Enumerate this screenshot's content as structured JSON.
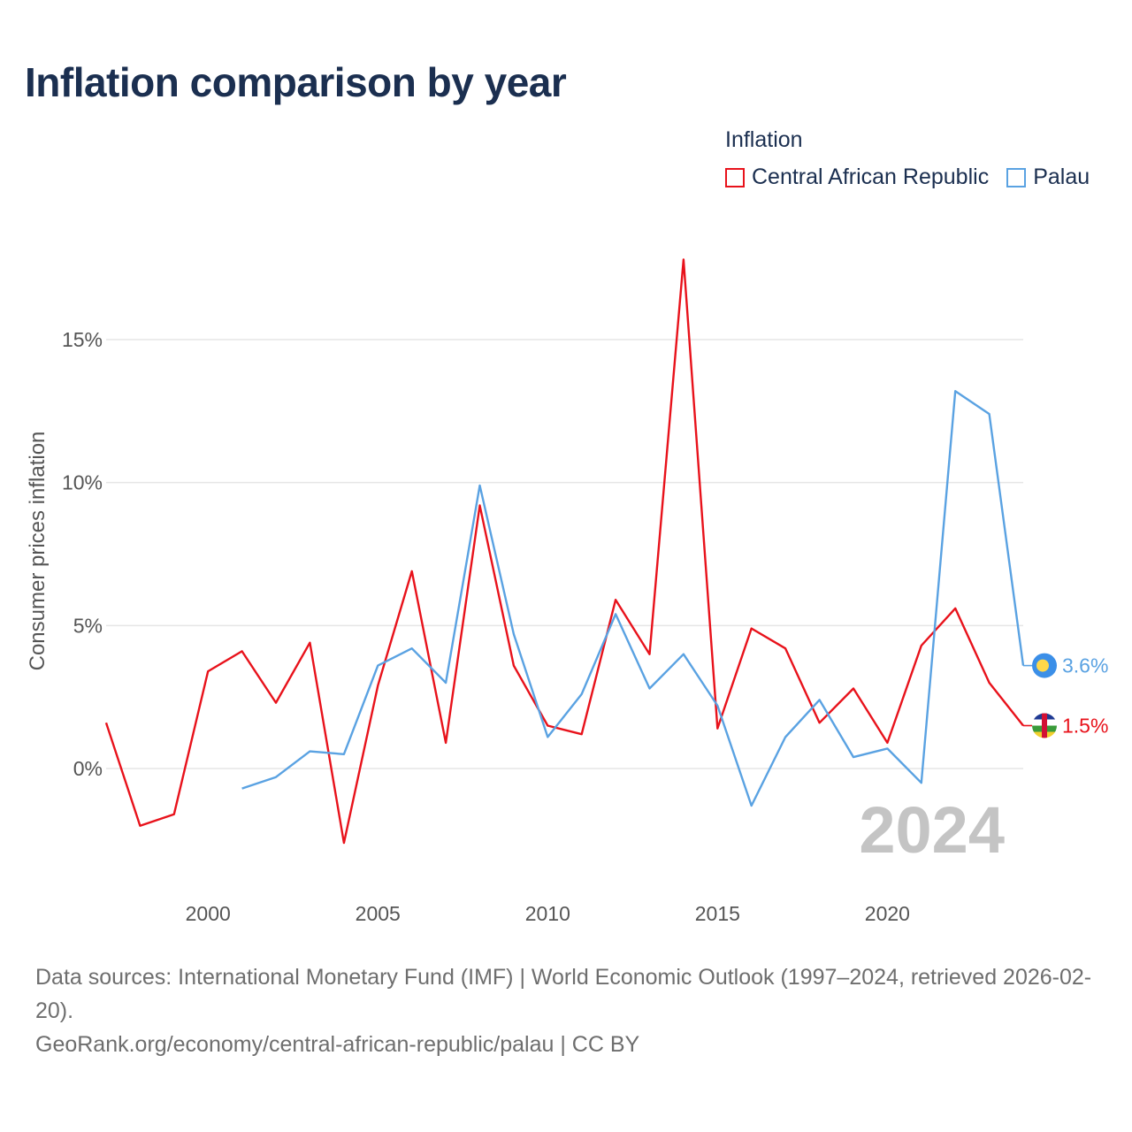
{
  "title": "Inflation comparison by year",
  "legend": {
    "title": "Inflation",
    "items": [
      {
        "label": "Central African Republic",
        "color": "#e8121b"
      },
      {
        "label": "Palau",
        "color": "#5aa2e2"
      }
    ]
  },
  "chart_data": {
    "type": "line",
    "title": "Inflation comparison by year",
    "xlabel": "",
    "ylabel": "Consumer prices inflation",
    "x_ticks": [
      2000,
      2005,
      2010,
      2015,
      2020
    ],
    "x_tick_labels": [
      "2000",
      "2005",
      "2010",
      "2015",
      "2020"
    ],
    "y_ticks": [
      0,
      5,
      10,
      15
    ],
    "y_tick_labels": [
      "0%",
      "5%",
      "10%",
      "15%"
    ],
    "xlim": [
      1997,
      2024
    ],
    "ylim": [
      -3.5,
      18
    ],
    "grid": true,
    "legend_position": "top-right",
    "current_year_label": "2024",
    "series": [
      {
        "name": "Central African Republic",
        "color": "#e8121b",
        "points": [
          [
            1997,
            1.6
          ],
          [
            1998,
            -2.0
          ],
          [
            1999,
            -1.6
          ],
          [
            2000,
            3.4
          ],
          [
            2001,
            4.1
          ],
          [
            2002,
            2.3
          ],
          [
            2003,
            4.4
          ],
          [
            2004,
            -2.6
          ],
          [
            2005,
            2.9
          ],
          [
            2006,
            6.9
          ],
          [
            2007,
            0.9
          ],
          [
            2008,
            9.2
          ],
          [
            2009,
            3.6
          ],
          [
            2010,
            1.5
          ],
          [
            2011,
            1.2
          ],
          [
            2012,
            5.9
          ],
          [
            2013,
            4.0
          ],
          [
            2014,
            17.8
          ],
          [
            2015,
            1.4
          ],
          [
            2016,
            4.9
          ],
          [
            2017,
            4.2
          ],
          [
            2018,
            1.6
          ],
          [
            2019,
            2.8
          ],
          [
            2020,
            0.9
          ],
          [
            2021,
            4.3
          ],
          [
            2022,
            5.6
          ],
          [
            2023,
            3.0
          ],
          [
            2024,
            1.5
          ]
        ],
        "end_label": "1.5%"
      },
      {
        "name": "Palau",
        "color": "#5aa2e2",
        "points": [
          [
            2001,
            -0.7
          ],
          [
            2002,
            -0.3
          ],
          [
            2003,
            0.6
          ],
          [
            2004,
            0.5
          ],
          [
            2005,
            3.6
          ],
          [
            2006,
            4.2
          ],
          [
            2007,
            3.0
          ],
          [
            2008,
            9.9
          ],
          [
            2009,
            4.7
          ],
          [
            2010,
            1.1
          ],
          [
            2011,
            2.6
          ],
          [
            2012,
            5.4
          ],
          [
            2013,
            2.8
          ],
          [
            2014,
            4.0
          ],
          [
            2015,
            2.2
          ],
          [
            2016,
            -1.3
          ],
          [
            2017,
            1.1
          ],
          [
            2018,
            2.4
          ],
          [
            2019,
            0.4
          ],
          [
            2020,
            0.7
          ],
          [
            2021,
            -0.5
          ],
          [
            2022,
            13.2
          ],
          [
            2023,
            12.4
          ],
          [
            2024,
            3.6
          ]
        ],
        "end_label": "3.6%"
      }
    ]
  },
  "footer": {
    "sources": "Data sources: International Monetary Fund (IMF) | World Economic Outlook (1997–2024, retrieved 2026-02-20).",
    "url": "GeoRank.org/economy/central-african-republic/palau | CC BY"
  }
}
